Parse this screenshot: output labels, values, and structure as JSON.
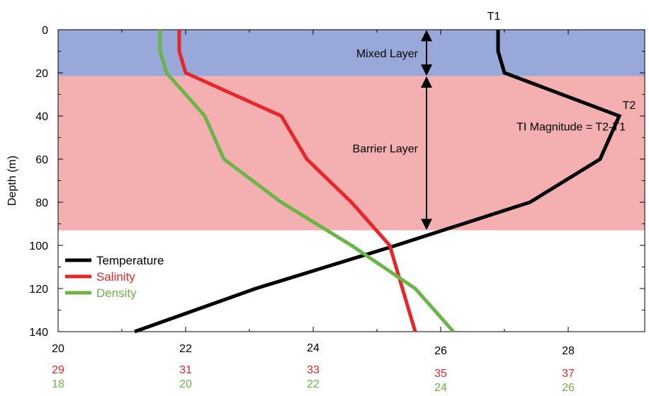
{
  "chart_data": {
    "type": "line",
    "title": "",
    "ylabel": "Depth (m)",
    "ylim": [
      0,
      140
    ],
    "y_inverted": true,
    "y_ticks": [
      0,
      20,
      40,
      60,
      80,
      100,
      120,
      140
    ],
    "x_axes": [
      {
        "variable": "Temperature",
        "color": "#000000",
        "ticks": [
          "20",
          "22",
          "24",
          "26",
          "28"
        ],
        "range": [
          20,
          29.2
        ]
      },
      {
        "variable": "Salinity",
        "color": "#e8262a",
        "ticks": [
          "29",
          "31",
          "33",
          "35",
          "37"
        ],
        "range": [
          29,
          38.2
        ]
      },
      {
        "variable": "Density",
        "color": "#6ab547",
        "ticks": [
          "18",
          "20",
          "22",
          "24",
          "26"
        ],
        "range": [
          18,
          27.2
        ]
      }
    ],
    "legend": {
      "position": "bottom-left",
      "entries": [
        {
          "label": "Temperature",
          "color": "#000000"
        },
        {
          "label": "Salinity",
          "color": "#e8262a"
        },
        {
          "label": "Density",
          "color": "#6ab547"
        }
      ]
    },
    "layers": [
      {
        "label": "Mixed Layer",
        "depth_range": [
          0,
          21.5
        ],
        "color": "#98a9d9"
      },
      {
        "label": "Barrier Layer",
        "depth_range": [
          21.5,
          93
        ],
        "color": "#f4b0b1"
      }
    ],
    "annotations": {
      "t1_label": "T1",
      "t2_label": "T2",
      "ti_text": "TI Magnitude = T2-T1"
    },
    "series": [
      {
        "name": "Temperature",
        "color": "#000000",
        "points": [
          {
            "x": 26.9,
            "depth": 0
          },
          {
            "x": 26.9,
            "depth": 10
          },
          {
            "x": 27.0,
            "depth": 20
          },
          {
            "x": 28.8,
            "depth": 40
          },
          {
            "x": 28.5,
            "depth": 60
          },
          {
            "x": 27.4,
            "depth": 80
          },
          {
            "x": 25.3,
            "depth": 100
          },
          {
            "x": 23.1,
            "depth": 120
          },
          {
            "x": 21.2,
            "depth": 140
          }
        ]
      },
      {
        "name": "Salinity",
        "color": "#e8262a",
        "points": [
          {
            "x": 30.9,
            "depth": 0
          },
          {
            "x": 30.9,
            "depth": 10
          },
          {
            "x": 31.0,
            "depth": 20
          },
          {
            "x": 32.5,
            "depth": 40
          },
          {
            "x": 32.9,
            "depth": 60
          },
          {
            "x": 33.6,
            "depth": 80
          },
          {
            "x": 34.2,
            "depth": 100
          },
          {
            "x": 34.4,
            "depth": 120
          },
          {
            "x": 34.6,
            "depth": 140
          }
        ]
      },
      {
        "name": "Density",
        "color": "#6ab547",
        "points": [
          {
            "x": 19.6,
            "depth": 0
          },
          {
            "x": 19.6,
            "depth": 10
          },
          {
            "x": 19.7,
            "depth": 20
          },
          {
            "x": 20.3,
            "depth": 40
          },
          {
            "x": 20.6,
            "depth": 60
          },
          {
            "x": 21.5,
            "depth": 80
          },
          {
            "x": 22.6,
            "depth": 100
          },
          {
            "x": 23.6,
            "depth": 120
          },
          {
            "x": 24.2,
            "depth": 140
          }
        ]
      }
    ]
  }
}
